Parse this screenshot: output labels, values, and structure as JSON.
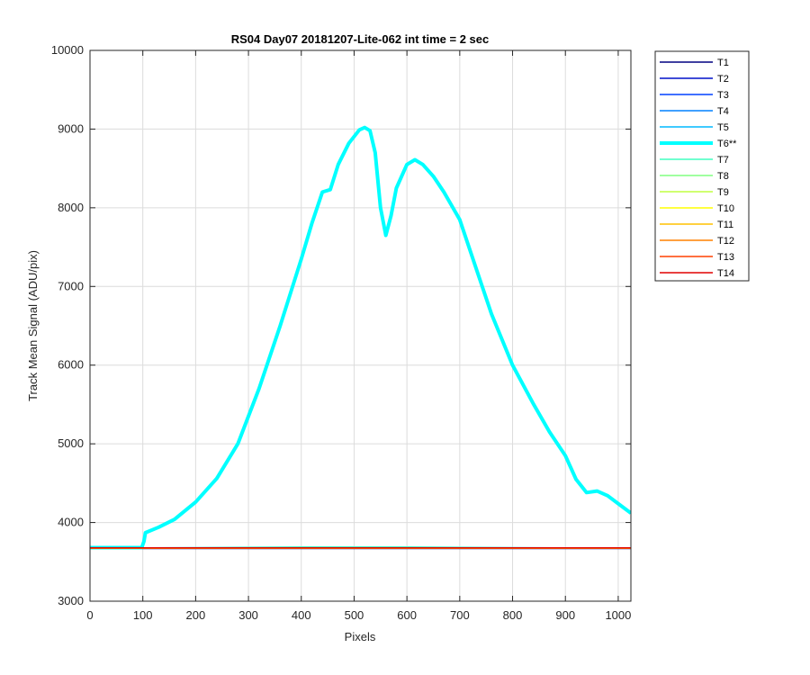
{
  "chart_data": {
    "type": "line",
    "title": "RS04 Day07 20181207-Lite-062 int time = 2 sec",
    "xlabel": "Pixels",
    "ylabel": "Track Mean Signal (ADU/pix)",
    "xlim": [
      0,
      1024
    ],
    "ylim": [
      3000,
      10000
    ],
    "xticks": [
      0,
      100,
      200,
      300,
      400,
      500,
      600,
      700,
      800,
      900,
      1000
    ],
    "yticks": [
      3000,
      4000,
      5000,
      6000,
      7000,
      8000,
      9000,
      10000
    ],
    "grid": true,
    "legend_position": "outside-right",
    "highlight_series": "T6**",
    "series": [
      {
        "name": "T1",
        "color": "#000080",
        "values": [
          [
            0,
            3670
          ],
          [
            1024,
            3670
          ]
        ]
      },
      {
        "name": "T2",
        "color": "#0010c8",
        "values": [
          [
            0,
            3670
          ],
          [
            1024,
            3670
          ]
        ]
      },
      {
        "name": "T3",
        "color": "#0040ff",
        "values": [
          [
            0,
            3672
          ],
          [
            1024,
            3672
          ]
        ]
      },
      {
        "name": "T4",
        "color": "#0080ff",
        "values": [
          [
            0,
            3672
          ],
          [
            1024,
            3672
          ]
        ]
      },
      {
        "name": "T5",
        "color": "#00b8ff",
        "values": [
          [
            0,
            3674
          ],
          [
            1024,
            3674
          ]
        ]
      },
      {
        "name": "T6**",
        "color": "#00ffff",
        "values": [
          [
            0,
            3680
          ],
          [
            98,
            3680
          ],
          [
            102,
            3760
          ],
          [
            105,
            3870
          ],
          [
            130,
            3940
          ],
          [
            160,
            4040
          ],
          [
            200,
            4260
          ],
          [
            240,
            4560
          ],
          [
            280,
            5000
          ],
          [
            320,
            5700
          ],
          [
            360,
            6500
          ],
          [
            400,
            7350
          ],
          [
            420,
            7800
          ],
          [
            440,
            8200
          ],
          [
            455,
            8230
          ],
          [
            470,
            8550
          ],
          [
            490,
            8820
          ],
          [
            510,
            8990
          ],
          [
            520,
            9020
          ],
          [
            530,
            8980
          ],
          [
            540,
            8700
          ],
          [
            550,
            8000
          ],
          [
            560,
            7650
          ],
          [
            570,
            7900
          ],
          [
            580,
            8250
          ],
          [
            600,
            8550
          ],
          [
            615,
            8610
          ],
          [
            630,
            8550
          ],
          [
            650,
            8400
          ],
          [
            670,
            8200
          ],
          [
            700,
            7850
          ],
          [
            730,
            7250
          ],
          [
            760,
            6650
          ],
          [
            800,
            6000
          ],
          [
            840,
            5500
          ],
          [
            870,
            5150
          ],
          [
            900,
            4850
          ],
          [
            920,
            4550
          ],
          [
            940,
            4380
          ],
          [
            960,
            4400
          ],
          [
            980,
            4340
          ],
          [
            1000,
            4240
          ],
          [
            1024,
            4120
          ]
        ]
      },
      {
        "name": "T7",
        "color": "#40ffc0",
        "values": [
          [
            0,
            3672
          ],
          [
            400,
            3690
          ],
          [
            600,
            3688
          ],
          [
            1024,
            3672
          ]
        ]
      },
      {
        "name": "T8",
        "color": "#80ff80",
        "values": [
          [
            0,
            3672
          ],
          [
            1024,
            3672
          ]
        ]
      },
      {
        "name": "T9",
        "color": "#c0ff40",
        "values": [
          [
            0,
            3672
          ],
          [
            1024,
            3672
          ]
        ]
      },
      {
        "name": "T10",
        "color": "#ffff00",
        "values": [
          [
            0,
            3674
          ],
          [
            1024,
            3674
          ]
        ]
      },
      {
        "name": "T11",
        "color": "#ffc000",
        "values": [
          [
            0,
            3674
          ],
          [
            1024,
            3674
          ]
        ]
      },
      {
        "name": "T12",
        "color": "#ff8000",
        "values": [
          [
            0,
            3676
          ],
          [
            1024,
            3676
          ]
        ]
      },
      {
        "name": "T13",
        "color": "#ff4000",
        "values": [
          [
            0,
            3676
          ],
          [
            1024,
            3676
          ]
        ]
      },
      {
        "name": "T14",
        "color": "#e00000",
        "values": [
          [
            0,
            3677
          ],
          [
            1024,
            3677
          ]
        ]
      }
    ]
  }
}
